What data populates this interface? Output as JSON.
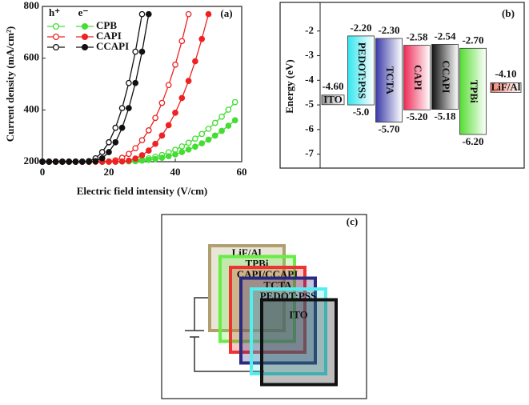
{
  "chart_data": [
    {
      "type": "line",
      "label": "(a)",
      "x_label": "Electric field intensity (V/cm)",
      "y_label": "Current density (mA/cm²)",
      "xlim": [
        0,
        60
      ],
      "ylim": [
        200,
        800
      ],
      "xticks": [
        0,
        20,
        40,
        60
      ],
      "yticks": [
        200,
        400,
        600,
        800
      ],
      "carriers": [
        "h⁺",
        "e⁻"
      ],
      "x": [
        0,
        2,
        4,
        6,
        8,
        10,
        12,
        14,
        16,
        18,
        20,
        22,
        24,
        26,
        28,
        30,
        32,
        34,
        36,
        38,
        40,
        42,
        44,
        46,
        48,
        50,
        52,
        54,
        56,
        58
      ],
      "series": [
        {
          "name": "CPB",
          "color": "#44dd33",
          "h_values": [
            200,
            200,
            200,
            200,
            200,
            200,
            200,
            200,
            200,
            200,
            200,
            201,
            201,
            202,
            205,
            208,
            213,
            219,
            226,
            236,
            246,
            259,
            273,
            289,
            307,
            327,
            350,
            374,
            401,
            430
          ],
          "e_values": [
            200,
            200,
            200,
            200,
            200,
            200,
            200,
            200,
            200,
            200,
            200,
            200,
            201,
            201,
            202,
            204,
            207,
            210,
            215,
            221,
            228,
            237,
            247,
            258,
            271,
            285,
            301,
            319,
            339,
            360
          ]
        },
        {
          "name": "CAPI",
          "color": "#ee2222",
          "h_values": [
            200,
            200,
            200,
            200,
            200,
            200,
            200,
            200,
            200,
            200,
            201,
            205,
            215,
            230,
            252,
            283,
            321,
            369,
            427,
            496,
            575,
            666,
            770,
            null,
            null,
            null,
            null,
            null,
            null,
            null
          ],
          "e_values": [
            200,
            200,
            200,
            200,
            200,
            200,
            200,
            200,
            200,
            200,
            200,
            200,
            201,
            204,
            212,
            225,
            243,
            269,
            301,
            341,
            389,
            446,
            512,
            588,
            674,
            770,
            null,
            null,
            null,
            null
          ]
        },
        {
          "name": "CCAPI",
          "color": "#111111",
          "h_values": [
            200,
            200,
            200,
            200,
            200,
            200,
            200,
            202,
            213,
            237,
            275,
            331,
            407,
            504,
            625,
            770,
            null,
            null,
            null,
            null,
            null,
            null,
            null,
            null,
            null,
            null,
            null,
            null,
            null,
            null
          ],
          "e_values": [
            200,
            200,
            200,
            200,
            200,
            200,
            200,
            200,
            202,
            213,
            237,
            275,
            331,
            407,
            504,
            625,
            770,
            null,
            null,
            null,
            null,
            null,
            null,
            null,
            null,
            null,
            null,
            null,
            null,
            null
          ]
        }
      ]
    },
    {
      "type": "range",
      "label": "(b)",
      "y_label": "Energy (eV)",
      "ylim": [
        -7.5,
        -1
      ],
      "yticks": [
        -2,
        -3,
        -4,
        -5,
        -6,
        -7
      ],
      "categories": [
        "ITO",
        "PEDOT:PSS",
        "TCTA",
        "CAPI",
        "CCAPI",
        "TPBi",
        "LiF/Al"
      ],
      "colors": [
        "#999999",
        "#33e6ee",
        "#3a3aa8",
        "#ee2a55",
        "#111111",
        "#55dd33",
        "#f08070"
      ],
      "series": [
        {
          "values": [
            null,
            -2.2,
            -2.3,
            -2.58,
            -2.54,
            -2.7,
            null
          ],
          "value_labels": [
            null,
            "-2.20",
            "-2.30",
            "-2.58",
            "-2.54",
            "-2.70",
            null
          ]
        },
        {
          "values": [
            null,
            -5.0,
            -5.7,
            -5.2,
            -5.18,
            -6.2,
            null
          ],
          "value_labels": [
            null,
            "-5.0",
            "-5.70",
            "-5.20",
            "-5.18",
            "-6.20",
            null
          ]
        },
        {
          "values": [
            -4.6,
            null,
            null,
            null,
            null,
            null,
            -4.1
          ],
          "value_labels": [
            "-4.60",
            null,
            null,
            null,
            null,
            null,
            "-4.10"
          ]
        }
      ]
    }
  ],
  "diagram": {
    "label": "(c)",
    "layers": [
      "LiF/Al",
      "TPBi",
      "CAPI/CCAPI",
      "TCTA",
      "PEDOT:PSS",
      "ITO"
    ],
    "colors": [
      "#b0a070",
      "#66ee44",
      "#ee3333",
      "#2a2a80",
      "#55eeee",
      "#111111"
    ]
  }
}
